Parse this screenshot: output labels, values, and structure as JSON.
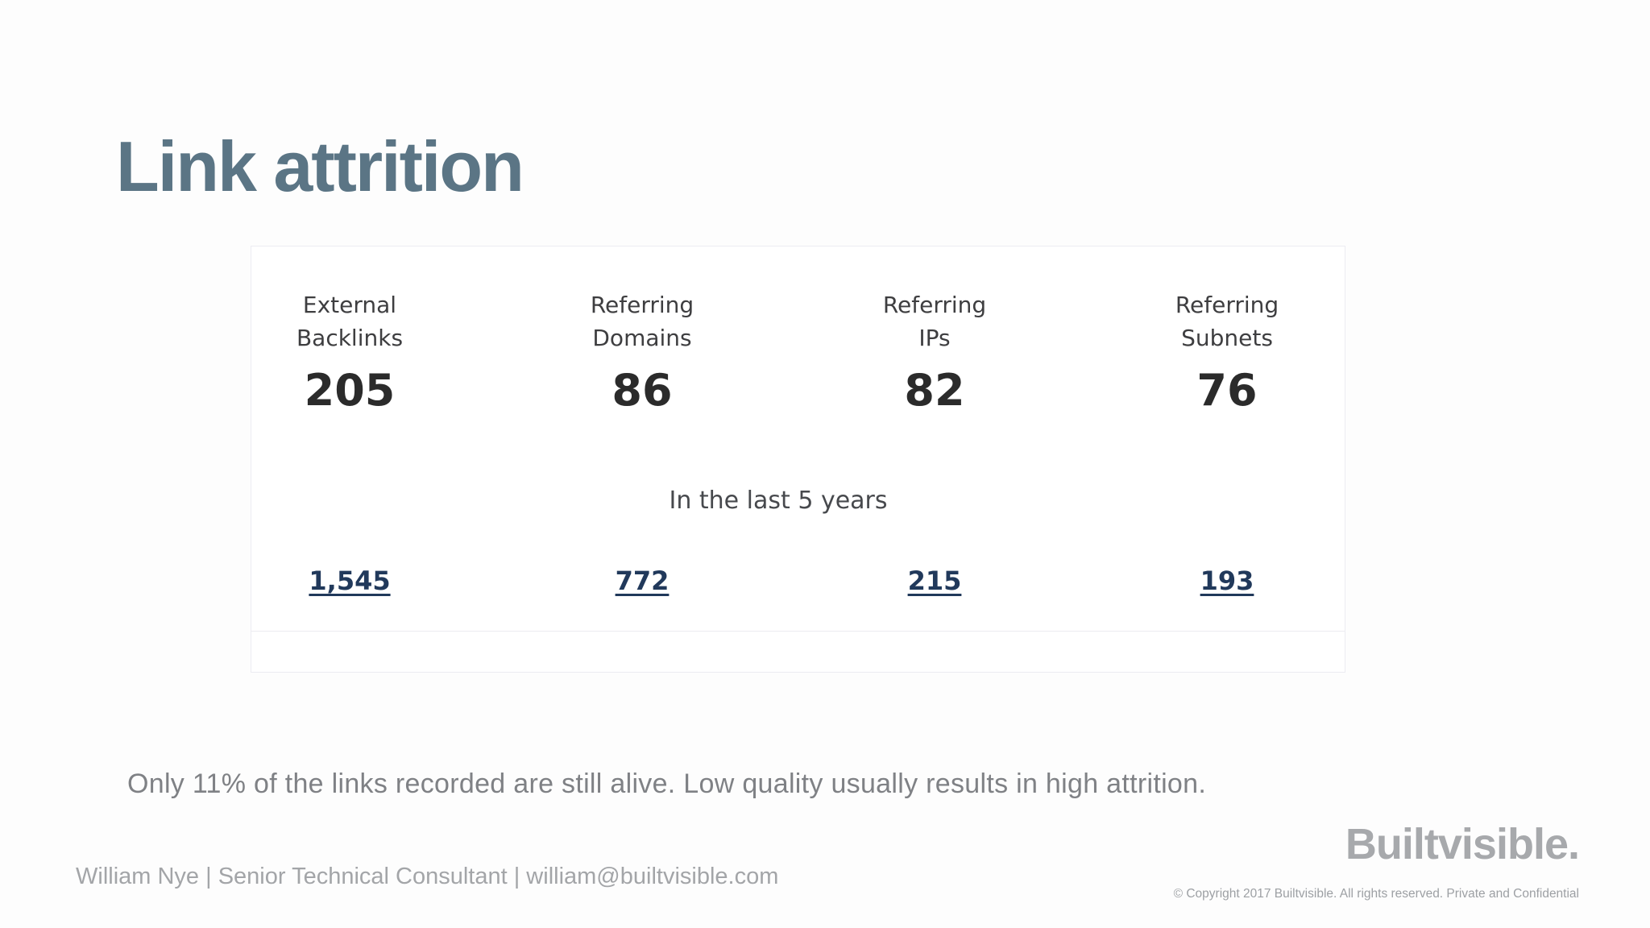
{
  "slide": {
    "title": "Link attrition",
    "insight": "Only 11% of the links recorded are still alive. Low quality usually results in high attrition."
  },
  "stats_table": {
    "period_label": "In the last 5 years",
    "columns": [
      {
        "label_line1": "External",
        "label_line2": "Backlinks",
        "current": "205",
        "last_5_years": "1,545"
      },
      {
        "label_line1": "Referring",
        "label_line2": "Domains",
        "current": "86",
        "last_5_years": "772"
      },
      {
        "label_line1": "Referring",
        "label_line2": "IPs",
        "current": "82",
        "last_5_years": "215"
      },
      {
        "label_line1": "Referring",
        "label_line2": "Subnets",
        "current": "76",
        "last_5_years": "193"
      }
    ]
  },
  "footer": {
    "byline": "William Nye |  Senior Technical Consultant |  william@builtvisible.com",
    "logo_text": "Builtvisible.",
    "copyright": "© Copyright 2017 Builtvisible. All rights reserved. Private and Confidential"
  },
  "colors": {
    "title": "#5b7585",
    "stat_text": "#2b2b2b",
    "link": "#21395b",
    "insight_text": "#7f8185",
    "footer_text": "#a3a5a8",
    "card_border": "#ececf2",
    "background": "#fdfdfd"
  }
}
